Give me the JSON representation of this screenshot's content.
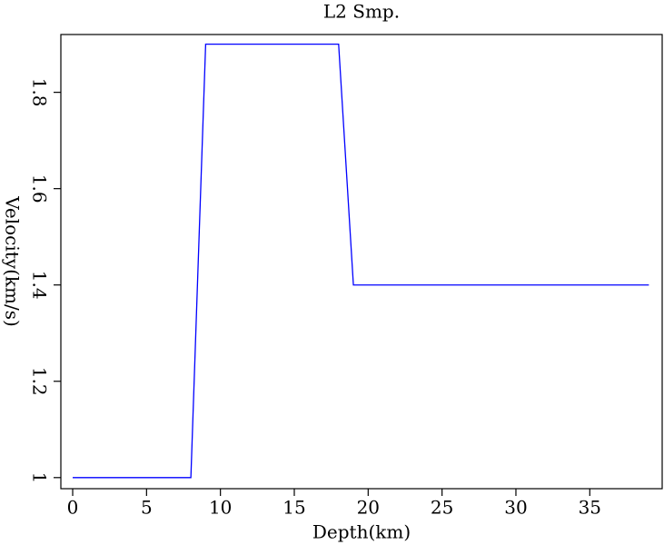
{
  "chart_data": {
    "type": "line",
    "title": "L2 Smp.",
    "x_label": "Depth(km)",
    "y_label": "Velocity(km/s)",
    "x": [
      0,
      8,
      9,
      18,
      19,
      39
    ],
    "series": [
      {
        "color": "#0000ff",
        "values": [
          1,
          1,
          1.9,
          1.9,
          1.4,
          1.4
        ]
      }
    ],
    "xlim": [
      -0.8,
      39.9
    ],
    "ylim": [
      0.977,
      1.92
    ],
    "xticks": [
      0,
      5,
      10,
      15,
      20,
      25,
      30,
      35
    ],
    "yticks": [
      1,
      1.2,
      1.4,
      1.6,
      1.8
    ],
    "grid": false
  }
}
